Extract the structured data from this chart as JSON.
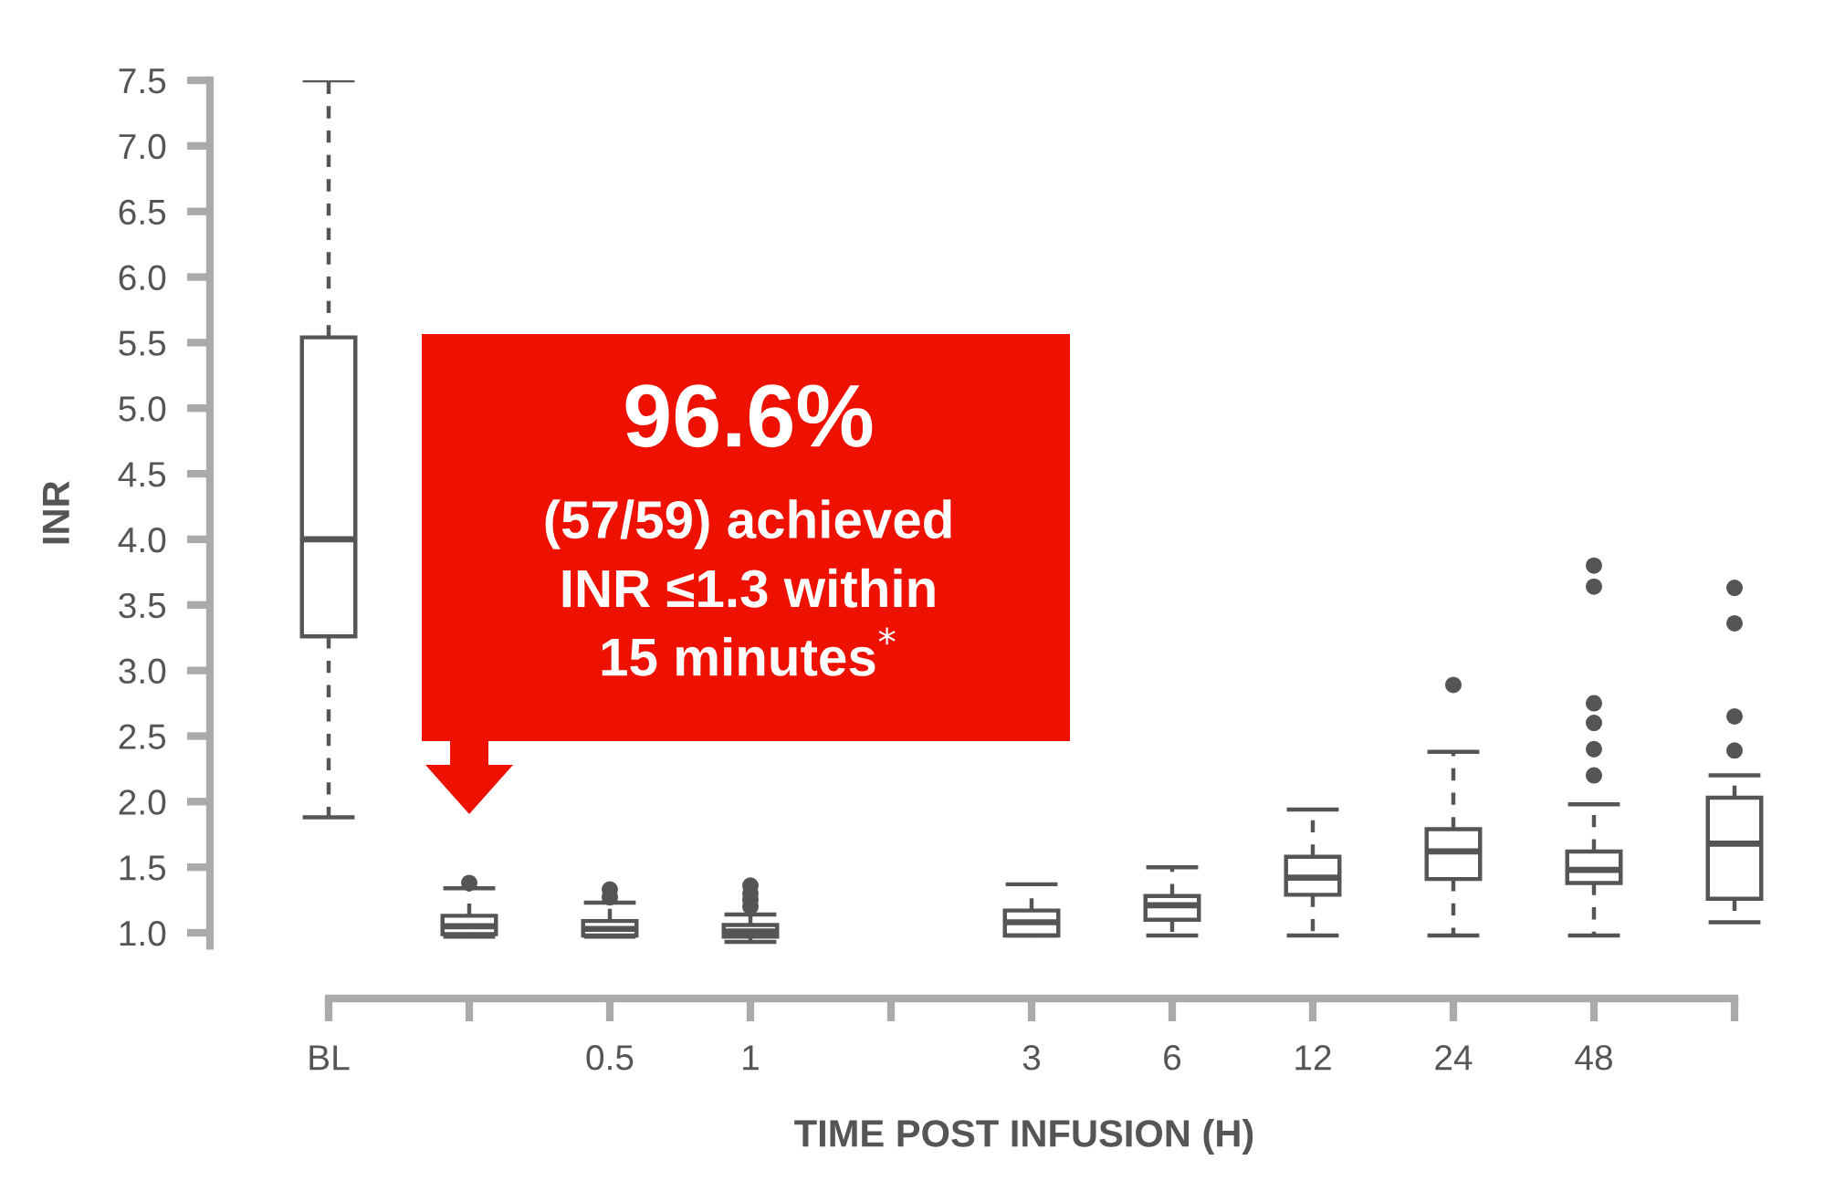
{
  "chart_data": {
    "type": "box",
    "xlabel": "TIME POST INFUSION (H)",
    "ylabel": "INR",
    "categories": [
      "BL",
      null,
      "0.5",
      "1",
      null,
      "3",
      "6",
      "12",
      "24",
      "48",
      null
    ],
    "boxes": [
      {
        "low": 1.88,
        "q1": 3.26,
        "median": 4.0,
        "q3": 5.54,
        "high": 7.5
      },
      {
        "low": 0.97,
        "q1": 0.99,
        "median": 1.05,
        "q3": 1.13,
        "high": 1.34,
        "outliers": [
          1.38
        ]
      },
      {
        "low": 0.97,
        "q1": 0.98,
        "median": 1.03,
        "q3": 1.09,
        "high": 1.23,
        "outliers": [
          1.27,
          1.33
        ]
      },
      {
        "low": 0.93,
        "q1": 0.97,
        "median": 1.01,
        "q3": 1.06,
        "high": 1.14,
        "outliers": [
          1.2,
          1.25,
          1.3,
          1.36
        ]
      },
      null,
      {
        "low": 0.98,
        "q1": 0.98,
        "median": 1.08,
        "q3": 1.17,
        "high": 1.37
      },
      {
        "low": 0.98,
        "q1": 1.1,
        "median": 1.21,
        "q3": 1.28,
        "high": 1.5
      },
      {
        "low": 0.98,
        "q1": 1.29,
        "median": 1.42,
        "q3": 1.58,
        "high": 1.94
      },
      {
        "low": 0.98,
        "q1": 1.41,
        "median": 1.62,
        "q3": 1.79,
        "high": 2.38,
        "outliers": [
          2.89
        ]
      },
      {
        "low": 0.98,
        "q1": 1.38,
        "median": 1.48,
        "q3": 1.62,
        "high": 1.98,
        "outliers": [
          2.2,
          2.4,
          2.6,
          2.75,
          3.64,
          3.8
        ]
      },
      {
        "low": 1.08,
        "q1": 1.26,
        "median": 1.68,
        "q3": 2.03,
        "high": 2.2,
        "outliers": [
          2.39,
          2.65,
          3.36,
          3.63
        ]
      }
    ],
    "color": "#555555",
    "ylim": [
      0.9,
      7.5
    ],
    "yticks": [
      {
        "value": 1.0,
        "label": "1.0"
      },
      1.5,
      {
        "value": 2.0,
        "label": "2.0"
      },
      2.5,
      {
        "value": 3.0,
        "label": "3.0"
      },
      3.5,
      {
        "value": 4.0,
        "label": "4.0"
      },
      4.5,
      {
        "value": 5.0,
        "label": "5.0"
      },
      5.5,
      {
        "value": 6.0,
        "label": "6.0"
      },
      6.5,
      {
        "value": 7.0,
        "label": "7.0"
      },
      7.5
    ],
    "annotations": [
      "96.6%",
      "(57/59) achieved\nINR ≤1.3 within\n15 minutes$^{*}$"
    ]
  }
}
